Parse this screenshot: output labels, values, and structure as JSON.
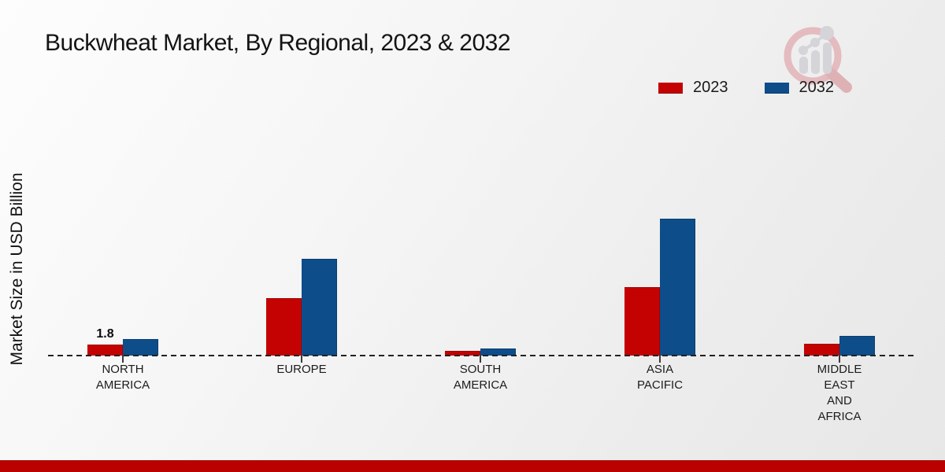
{
  "page": {
    "title": "Buckwheat Market, By Regional, 2023 & 2032"
  },
  "chart_data": {
    "type": "bar",
    "title": "Buckwheat Market, By Regional, 2023 & 2032",
    "xlabel": "",
    "ylabel": "Market Size in USD Billion",
    "categories": [
      "NORTH AMERICA",
      "EUROPE",
      "SOUTH AMERICA",
      "ASIA PACIFIC",
      "MIDDLE EAST AND AFRICA"
    ],
    "category_label_lines": [
      [
        "NORTH",
        "AMERICA"
      ],
      [
        "EUROPE"
      ],
      [
        "SOUTH",
        "AMERICA"
      ],
      [
        "ASIA",
        "PACIFIC"
      ],
      [
        "MIDDLE",
        "EAST",
        "AND",
        "AFRICA"
      ]
    ],
    "series": [
      {
        "name": "2023",
        "color": "#c40202",
        "values": [
          1.8,
          9.4,
          0.8,
          11.2,
          1.9
        ]
      },
      {
        "name": "2032",
        "color": "#0d4d8a",
        "values": [
          2.7,
          15.8,
          1.2,
          22.4,
          3.2
        ]
      }
    ],
    "data_labels": [
      {
        "series_index": 0,
        "category_index": 0,
        "text": "1.8"
      }
    ],
    "axis": {
      "baseline_style": "dashed",
      "baseline_color": "#222222",
      "grid": false,
      "y_axis_ticks_visible": false
    },
    "legend": {
      "position": "top-right",
      "entries": [
        "2023",
        "2032"
      ]
    }
  },
  "branding": {
    "logo_name": "magnifier-bar-chart-watermark",
    "footer_bar_color": "#bb0000",
    "logo_ring_color": "#e3b6ba",
    "logo_bar_color": "#d2d2d7"
  }
}
